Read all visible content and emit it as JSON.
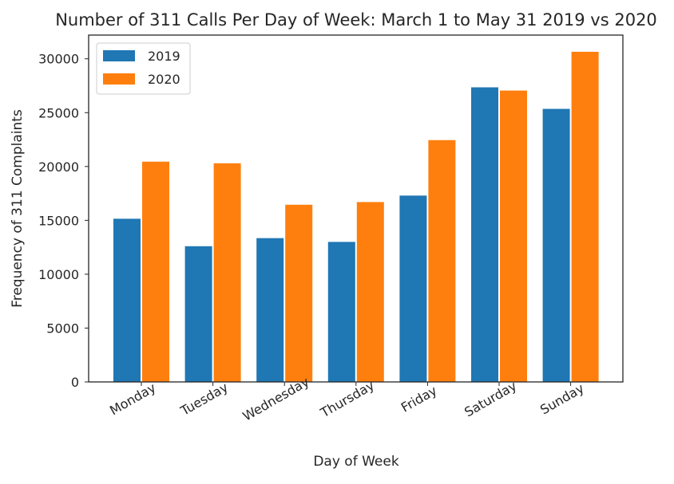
{
  "chart_data": {
    "type": "bar",
    "title": "Number of 311 Calls Per Day of Week: March 1 to May 31 2019 vs 2020",
    "xlabel": "Day of Week",
    "ylabel": "Frequency of 311 Complaints",
    "categories": [
      "Monday",
      "Tuesday",
      "Wednesday",
      "Thursday",
      "Friday",
      "Saturday",
      "Sunday"
    ],
    "series": [
      {
        "name": "2019",
        "color": "#1f77b4",
        "values": [
          15150,
          12600,
          13350,
          13000,
          17300,
          27350,
          25350
        ]
      },
      {
        "name": "2020",
        "color": "#ff7f0e",
        "values": [
          20450,
          20300,
          16450,
          16700,
          22450,
          27050,
          30650
        ]
      }
    ],
    "ylim": [
      0,
      32200
    ],
    "yticks": [
      0,
      5000,
      10000,
      15000,
      20000,
      25000,
      30000
    ],
    "grid": false,
    "legend_position": "top-left"
  }
}
